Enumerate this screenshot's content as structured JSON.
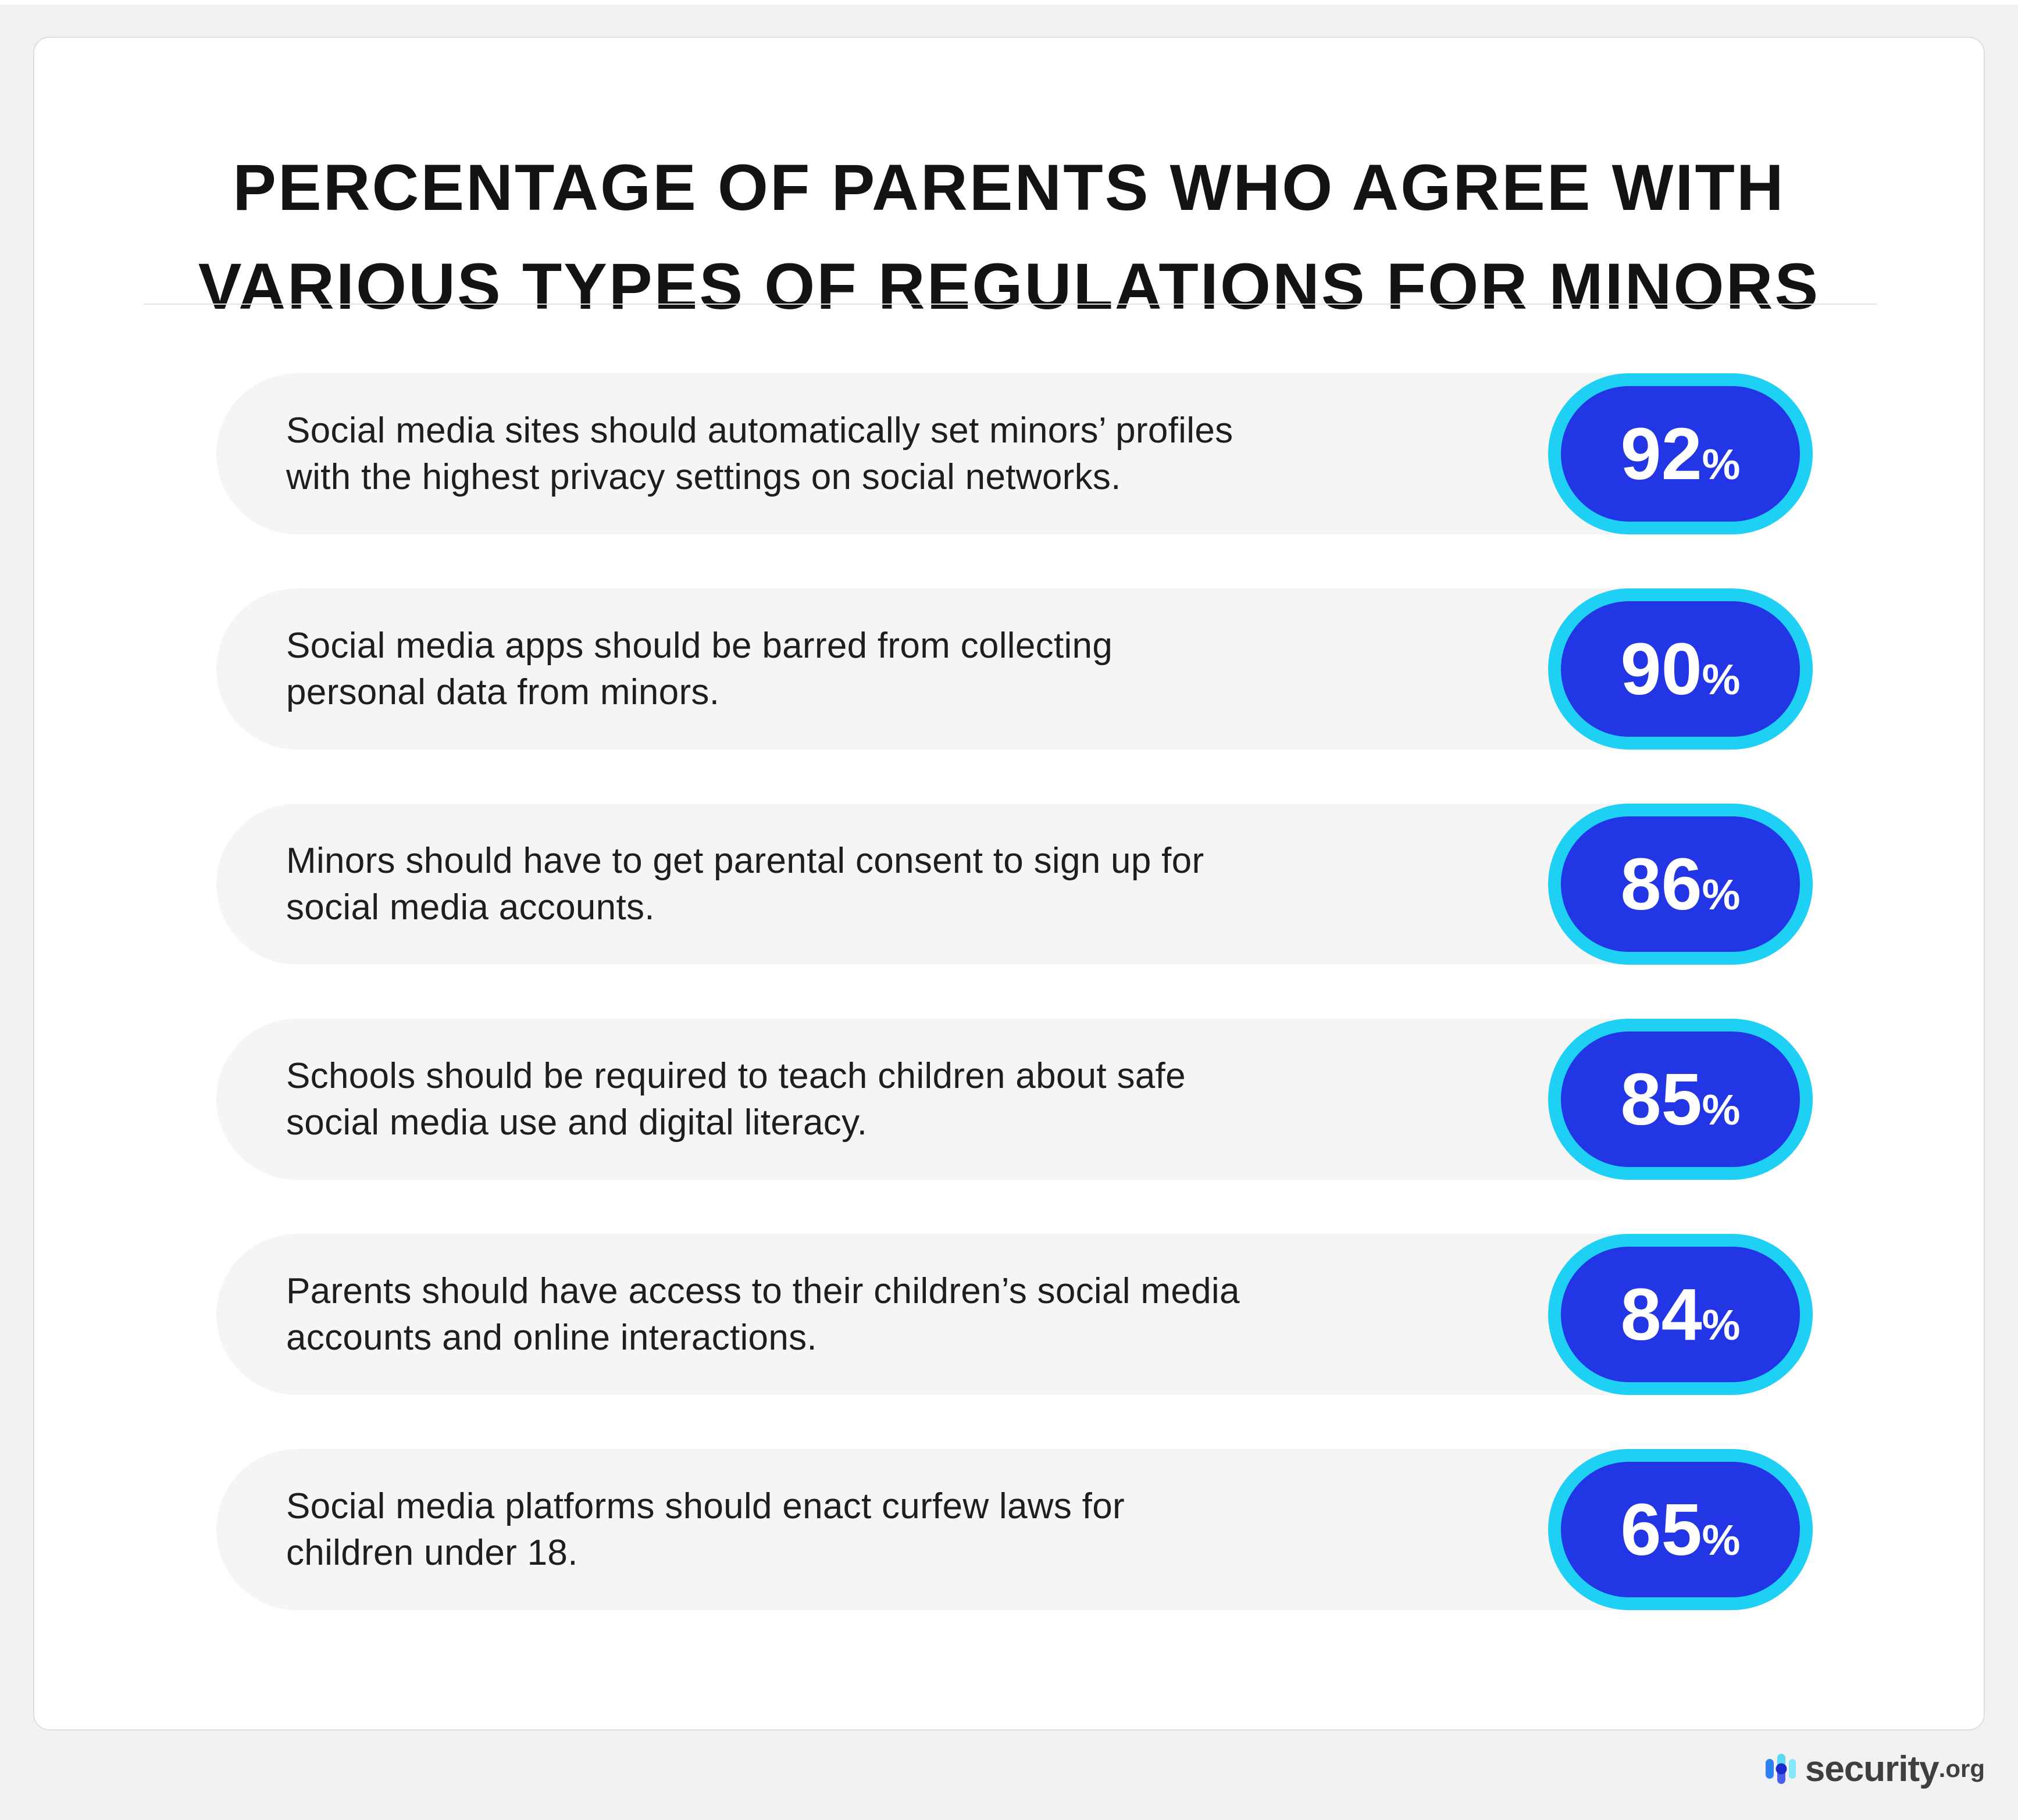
{
  "page": {
    "title": "PERCENTAGE OF PARENTS WHO AGREE WITH\nVARIOUS TYPES OF REGULATIONS FOR MINORS"
  },
  "rows": [
    {
      "statement": "Social media sites should automatically set minors’ profiles\nwith the highest privacy settings on social networks.",
      "value": "92",
      "unit": "%"
    },
    {
      "statement": "Social media apps should be barred from collecting\npersonal data from minors.",
      "value": "90",
      "unit": "%"
    },
    {
      "statement": "Minors should have to get parental consent to sign up for\nsocial media accounts.",
      "value": "86",
      "unit": "%"
    },
    {
      "statement": "Schools should be required to teach children about safe\nsocial media use and digital literacy.",
      "value": "85",
      "unit": "%"
    },
    {
      "statement": "Parents should have access to their children’s social media\naccounts and online interactions.",
      "value": "84",
      "unit": "%"
    },
    {
      "statement": "Social media platforms should enact curfew laws for\nchildren under 18.",
      "value": "65",
      "unit": "%"
    }
  ],
  "footer": {
    "brand": "security",
    "tld": ".org"
  },
  "colors": {
    "badge_fill": "#2336e6",
    "badge_ring": "#1ed1f4",
    "row_stripe": "#f5f5f6",
    "page_background": "#f1f1f3",
    "card_background": "#ffffff",
    "title_text": "#131313",
    "body_text": "#1e1e20",
    "logo_text": "#3f3f41"
  },
  "chart_data": {
    "type": "bar",
    "orientation": "horizontal",
    "title": "Percentage of parents who agree with various types of regulations for minors",
    "categories": [
      "Social media sites should automatically set minors’ profiles with the highest privacy settings on social networks.",
      "Social media apps should be barred from collecting personal data from minors.",
      "Minors should have to get parental consent to sign up for social media accounts.",
      "Schools should be required to teach children about safe social media use and digital literacy.",
      "Parents should have access to their children’s social media accounts and online interactions.",
      "Social media platforms should enact curfew laws for children under 18."
    ],
    "values": [
      92,
      90,
      86,
      85,
      84,
      65
    ],
    "unit": "%",
    "xlim": [
      0,
      100
    ],
    "data_labels": true,
    "legend": false,
    "grid": false
  }
}
